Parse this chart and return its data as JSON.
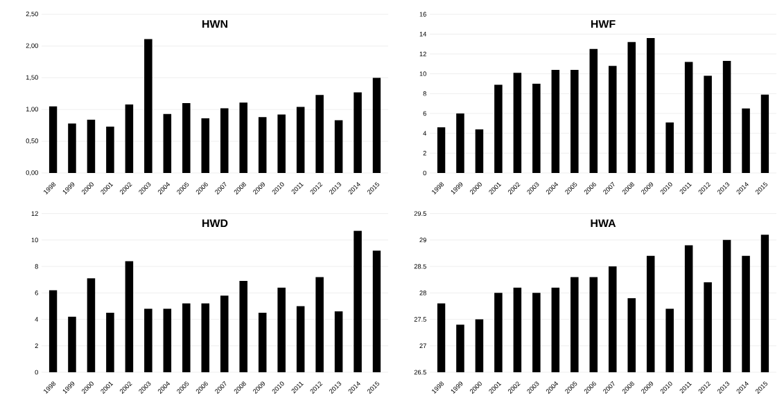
{
  "chart_data": [
    {
      "type": "bar",
      "title": "HWN",
      "categories": [
        "1998",
        "1999",
        "2000",
        "2001",
        "2002",
        "2003",
        "2004",
        "2005",
        "2006",
        "2007",
        "2008",
        "2009",
        "2010",
        "2011",
        "2012",
        "2013",
        "2014",
        "2015"
      ],
      "values": [
        1.05,
        0.78,
        0.84,
        0.73,
        1.08,
        2.11,
        0.93,
        1.1,
        0.86,
        1.02,
        1.11,
        0.88,
        0.92,
        1.04,
        1.23,
        0.83,
        1.27,
        1.5
      ],
      "color": "#000000",
      "ylim": [
        0,
        2.5
      ],
      "yticks": [
        {
          "value": 0,
          "label": "0,00"
        },
        {
          "value": 0.5,
          "label": "0,50"
        },
        {
          "value": 1,
          "label": "1,00"
        },
        {
          "value": 1.5,
          "label": "1,50"
        },
        {
          "value": 2,
          "label": "2,00"
        },
        {
          "value": 2.5,
          "label": "2,50"
        }
      ],
      "grid": "y"
    },
    {
      "type": "bar",
      "title": "HWF",
      "categories": [
        "1998",
        "1999",
        "2000",
        "2001",
        "2002",
        "2003",
        "2004",
        "2005",
        "2006",
        "2007",
        "2008",
        "2009",
        "2010",
        "2011",
        "2012",
        "2013",
        "2014",
        "2015"
      ],
      "values": [
        4.6,
        6.0,
        4.4,
        8.9,
        10.1,
        9.0,
        10.4,
        10.4,
        12.5,
        10.8,
        13.2,
        13.6,
        5.1,
        11.2,
        9.8,
        11.3,
        6.5,
        7.9
      ],
      "color": "#000000",
      "ylim": [
        0,
        16
      ],
      "yticks": [
        0,
        2,
        4,
        6,
        8,
        10,
        12,
        14,
        16
      ],
      "grid": "y"
    },
    {
      "type": "bar",
      "title": "HWD",
      "categories": [
        "1998",
        "1999",
        "2000",
        "2001",
        "2002",
        "2003",
        "2004",
        "2005",
        "2006",
        "2007",
        "2008",
        "2009",
        "2010",
        "2011",
        "2012",
        "2013",
        "2014",
        "2015"
      ],
      "values": [
        6.2,
        4.2,
        7.1,
        4.5,
        8.4,
        4.8,
        4.8,
        5.2,
        5.2,
        5.8,
        6.9,
        4.5,
        6.4,
        5.0,
        7.2,
        4.6,
        10.7,
        9.2
      ],
      "color": "#000000",
      "ylim": [
        0,
        12
      ],
      "yticks": [
        0,
        2,
        4,
        6,
        8,
        10,
        12
      ],
      "grid": "y"
    },
    {
      "type": "bar",
      "title": "HWA",
      "categories": [
        "1998",
        "1999",
        "2000",
        "2001",
        "2002",
        "2003",
        "2004",
        "2005",
        "2006",
        "2007",
        "2008",
        "2009",
        "2010",
        "2011",
        "2012",
        "2013",
        "2014",
        "2015"
      ],
      "values": [
        27.8,
        27.4,
        27.5,
        28.0,
        28.1,
        28.0,
        28.1,
        28.3,
        28.3,
        28.5,
        27.9,
        28.7,
        27.7,
        28.9,
        28.2,
        29.0,
        28.7,
        29.1
      ],
      "color": "#000000",
      "ylim": [
        26.5,
        29.5
      ],
      "yticks": [
        26.5,
        27,
        27.5,
        28,
        28.5,
        29,
        29.5
      ],
      "grid": "y"
    }
  ]
}
